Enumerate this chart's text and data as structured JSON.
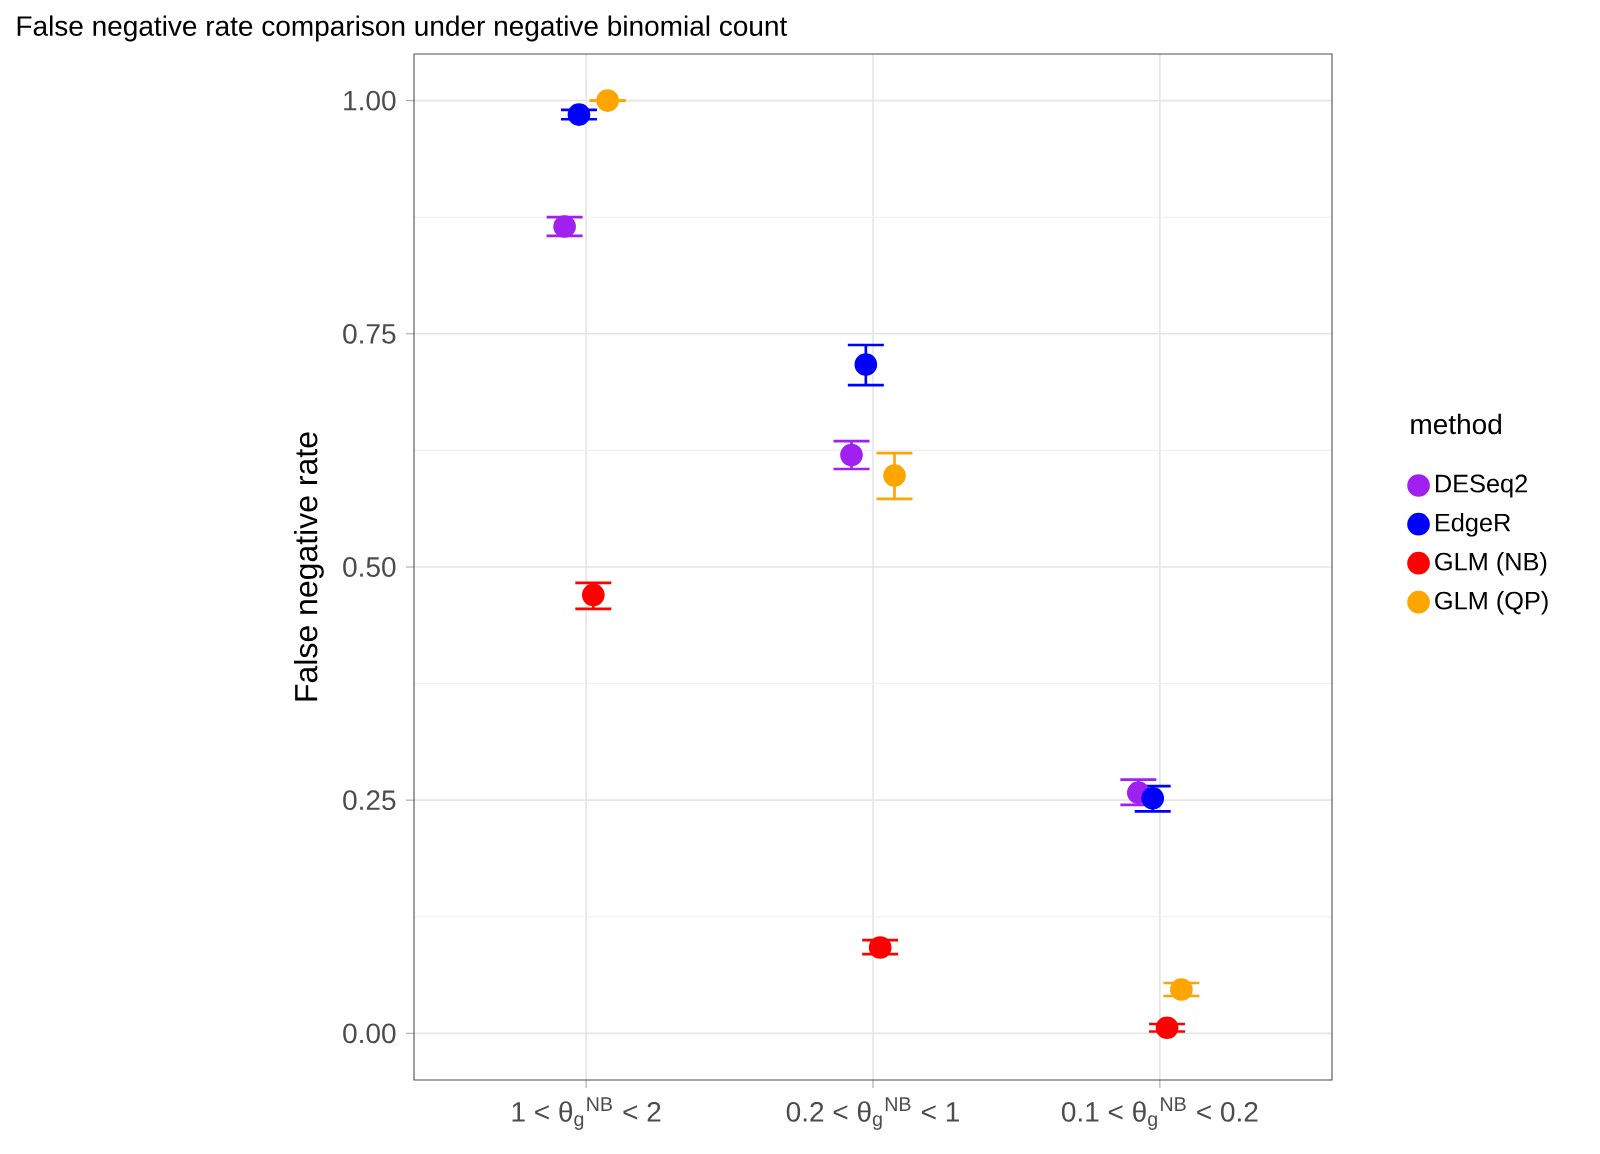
{
  "chart_data": {
    "type": "scatter",
    "title": "False negative rate comparison under negative binomial count",
    "ylabel": "False negative rate",
    "legend_title": "method",
    "categories": [
      "1 < θ$_{g}$$^{NB}$ < 2",
      "0.2 < θ$_{g}$$^{NB}$ < 1",
      "0.1 < θ$_{g}$$^{NB}$ < 0.2"
    ],
    "series": [
      {
        "name": "DESeq2",
        "color": "#a020f0",
        "values": [
          0.865,
          0.62,
          0.258
        ],
        "errors": [
          [
            0.855,
            0.875
          ],
          [
            0.605,
            0.635
          ],
          [
            0.245,
            0.272
          ]
        ]
      },
      {
        "name": "EdgeR",
        "color": "#0000ff",
        "values": [
          0.985,
          0.717,
          0.252
        ],
        "errors": [
          [
            0.98,
            0.99
          ],
          [
            0.695,
            0.738
          ],
          [
            0.238,
            0.265
          ]
        ]
      },
      {
        "name": "GLM (NB)",
        "color": "#ff0000",
        "values": [
          0.47,
          0.092,
          0.006
        ],
        "errors": [
          [
            0.455,
            0.483
          ],
          [
            0.085,
            0.1
          ],
          [
            0.002,
            0.01
          ]
        ]
      },
      {
        "name": "GLM (QP)",
        "color": "#ffa500",
        "values": [
          1.0,
          0.598,
          0.047
        ],
        "errors": [
          [
            1.0,
            1.0
          ],
          [
            0.573,
            0.622
          ],
          [
            0.04,
            0.054
          ]
        ]
      }
    ],
    "ylim": [
      -0.05,
      1.05
    ],
    "yticks": [
      {
        "value": 0,
        "label": "0.00"
      },
      {
        "value": 0.25,
        "label": "0.25"
      },
      {
        "value": 0.5,
        "label": "0.50"
      },
      {
        "value": 0.75,
        "label": "0.75"
      },
      {
        "value": 1,
        "label": "1.00"
      }
    ],
    "grid": true,
    "legend": "right",
    "marker": "circle"
  }
}
